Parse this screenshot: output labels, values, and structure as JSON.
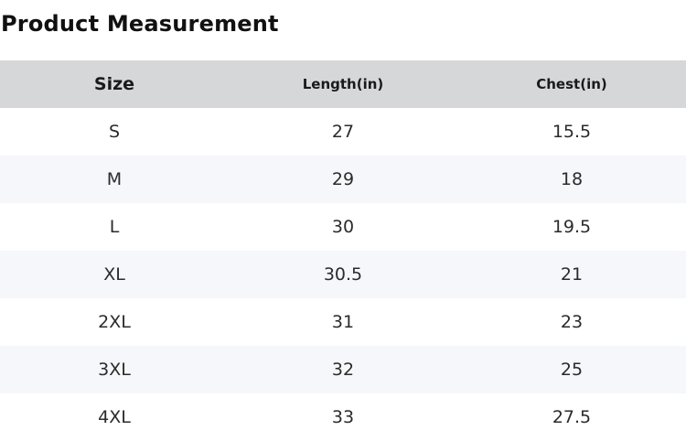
{
  "title": "Product Measurement",
  "table": {
    "headers": [
      "Size",
      "Length(in)",
      "Chest(in)"
    ],
    "rows": [
      [
        "S",
        "27",
        "15.5"
      ],
      [
        "M",
        "29",
        "18"
      ],
      [
        "L",
        "30",
        "19.5"
      ],
      [
        "XL",
        "30.5",
        "21"
      ],
      [
        "2XL",
        "31",
        "23"
      ],
      [
        "3XL",
        "32",
        "25"
      ],
      [
        "4XL",
        "33",
        "27.5"
      ]
    ]
  }
}
